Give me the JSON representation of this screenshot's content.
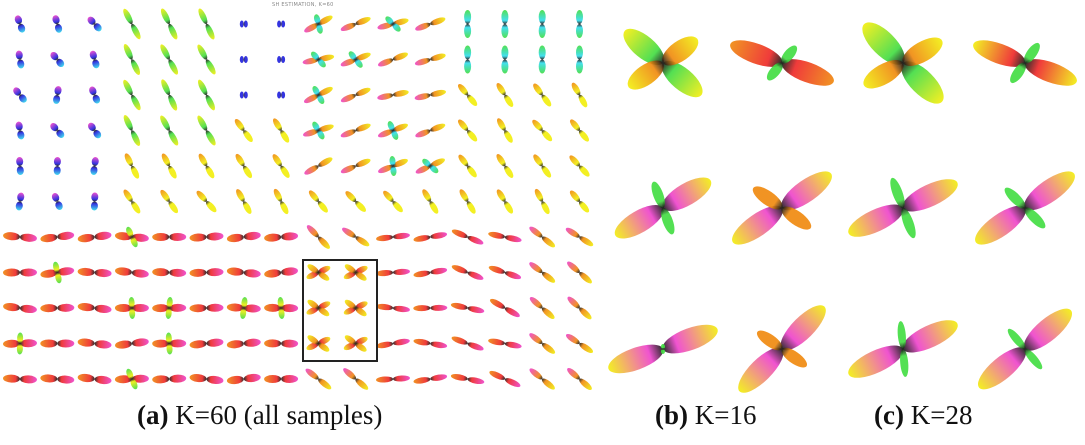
{
  "figure": {
    "panel_a": {
      "tiny_title": "SH ESTIMATION, K=60",
      "caption_label": "(a)",
      "caption_text": "K=60 (all samples)",
      "grid": {
        "columns": 16,
        "rows": 11
      },
      "highlight_box": {
        "columns": [
          8,
          9
        ],
        "rows": [
          7,
          9
        ],
        "stroke": "#222222"
      }
    },
    "panel_b": {
      "caption_label": "(b)",
      "caption_text": "K=16",
      "grid": {
        "columns": 2,
        "rows": 3
      }
    },
    "panel_c": {
      "caption_label": "(c)",
      "caption_text": "K=28",
      "grid": {
        "columns": 2,
        "rows": 3
      }
    },
    "colors": {
      "blue": "#2222dd",
      "cyan": "#33ddee",
      "green": "#44dd44",
      "yellow": "#f2ee10",
      "red": "#ee2a2a",
      "magenta": "#ee44cc",
      "orange": "#f08a10",
      "dark_center": "#222222"
    }
  }
}
